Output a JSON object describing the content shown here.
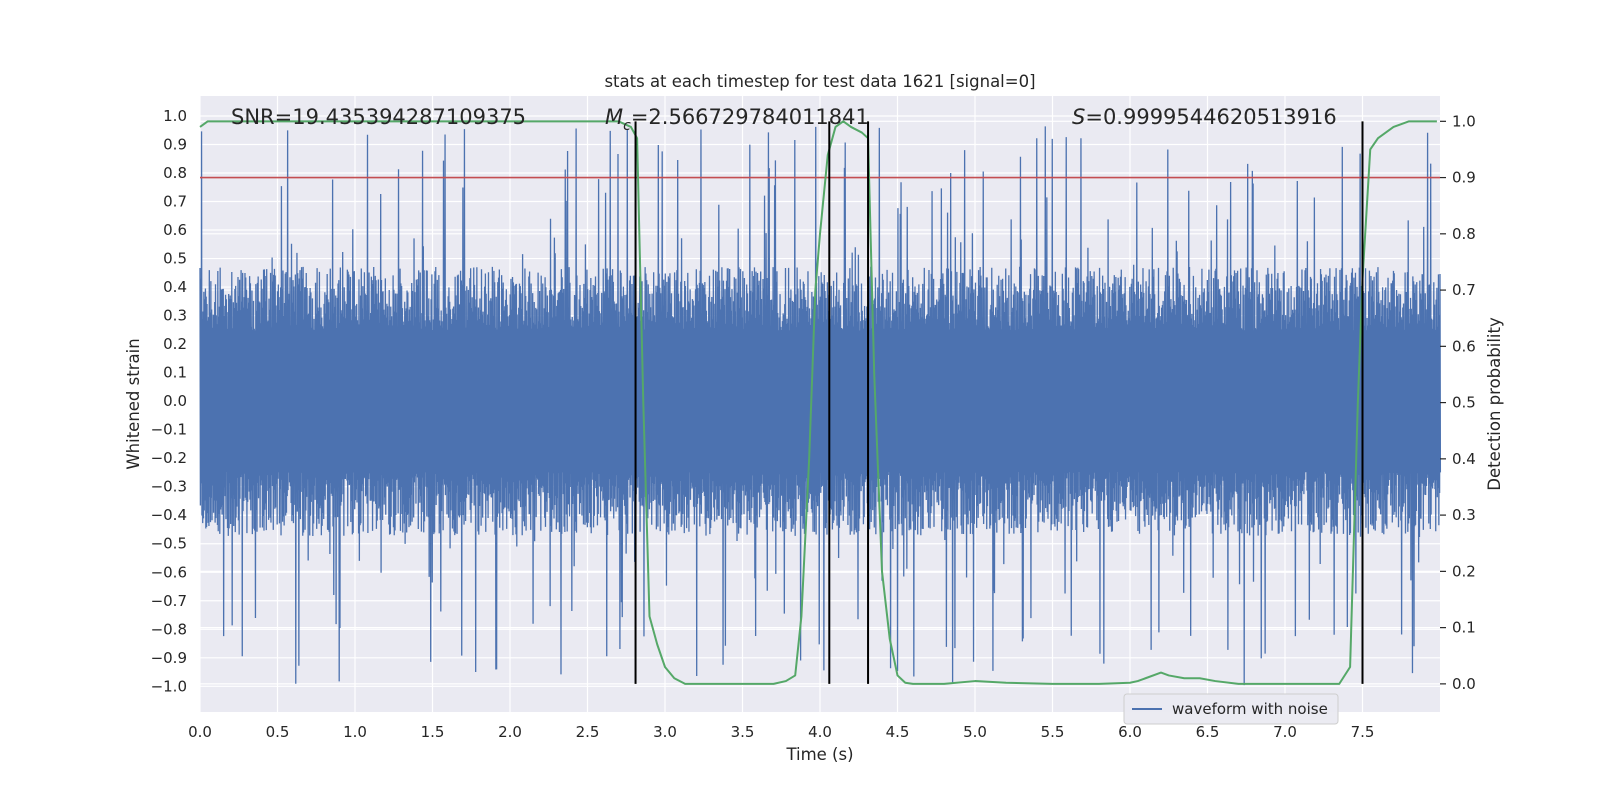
{
  "chart_data": {
    "type": "line",
    "title": "stats at each timestep for test data 1621 [signal=0]",
    "xlabel": "Time (s)",
    "ylabel_left": "Whitened strain",
    "ylabel_right": "Detection probability",
    "xlim": [
      0.0,
      8.0
    ],
    "ylim_left": [
      -1.09,
      1.07
    ],
    "ylim_right": [
      -0.05,
      1.045
    ],
    "x_ticks": [
      "0.0",
      "0.5",
      "1.0",
      "1.5",
      "2.0",
      "2.5",
      "3.0",
      "3.5",
      "4.0",
      "4.5",
      "5.0",
      "5.5",
      "6.0",
      "6.5",
      "7.0",
      "7.5"
    ],
    "y_ticks_left": [
      "1.0",
      "0.9",
      "0.8",
      "0.7",
      "0.6",
      "0.5",
      "0.4",
      "0.3",
      "0.2",
      "0.1",
      "0.0",
      "−0.1",
      "−0.2",
      "−0.3",
      "−0.4",
      "−0.5",
      "−0.6",
      "−0.7",
      "−0.8",
      "−0.9",
      "−1.0"
    ],
    "y_ticks_right": [
      "1.0",
      "0.9",
      "0.8",
      "0.7",
      "0.6",
      "0.5",
      "0.4",
      "0.3",
      "0.2",
      "0.1",
      "0.0"
    ],
    "grid": true,
    "legend_position": "bottom-right",
    "annotations": {
      "snr": "SNR=19.435394287109375",
      "mc_symbol": "M",
      "mc_sub": "c",
      "mc_value": "=2.566729784011841",
      "s_symbol": "S",
      "s_value": "=0.9999544620513916"
    },
    "series": [
      {
        "name": "waveform with noise",
        "axis": "left",
        "color": "#4c72b0",
        "kind": "noise",
        "envelope_typical": 0.45,
        "max_peak": 0.97,
        "min_peak": -1.0
      },
      {
        "axis": "right",
        "color": "#55a868",
        "x": [
          0.0,
          0.05,
          0.1,
          0.5,
          1.0,
          1.5,
          2.0,
          2.5,
          2.7,
          2.78,
          2.82,
          2.86,
          2.9,
          2.95,
          3.0,
          3.06,
          3.13,
          3.25,
          3.5,
          3.7,
          3.78,
          3.84,
          3.88,
          3.93,
          3.97,
          4.0,
          4.05,
          4.1,
          4.15,
          4.2,
          4.27,
          4.31,
          4.35,
          4.4,
          4.45,
          4.5,
          4.55,
          4.6,
          4.8,
          5.0,
          5.2,
          5.5,
          5.8,
          6.0,
          6.05,
          6.1,
          6.2,
          6.25,
          6.35,
          6.45,
          6.55,
          6.7,
          6.9,
          7.2,
          7.35,
          7.42,
          7.47,
          7.5,
          7.55,
          7.6,
          7.7,
          7.8,
          7.85,
          7.98
        ],
        "values": [
          0.99,
          1.0,
          1.0,
          1.0,
          1.0,
          1.0,
          1.0,
          1.0,
          1.0,
          0.99,
          0.97,
          0.5,
          0.12,
          0.07,
          0.03,
          0.01,
          0.0,
          0.0,
          0.0,
          0.0,
          0.005,
          0.015,
          0.12,
          0.4,
          0.7,
          0.8,
          0.94,
          0.99,
          1.0,
          0.99,
          0.98,
          0.97,
          0.55,
          0.2,
          0.08,
          0.015,
          0.002,
          0.0,
          0.0,
          0.005,
          0.002,
          0.0,
          0.0,
          0.002,
          0.005,
          0.01,
          0.02,
          0.015,
          0.01,
          0.01,
          0.005,
          0.0,
          0.0,
          0.0,
          0.0,
          0.03,
          0.5,
          0.72,
          0.95,
          0.97,
          0.99,
          1.0,
          1.0,
          1.0
        ]
      }
    ],
    "threshold_line": {
      "axis": "right",
      "value": 0.9,
      "color": "#c44e52"
    },
    "vertical_markers": {
      "color": "#000000",
      "x": [
        2.81,
        4.06,
        4.31,
        7.5
      ],
      "ymin": 0.0,
      "ymax": 1.0
    }
  }
}
